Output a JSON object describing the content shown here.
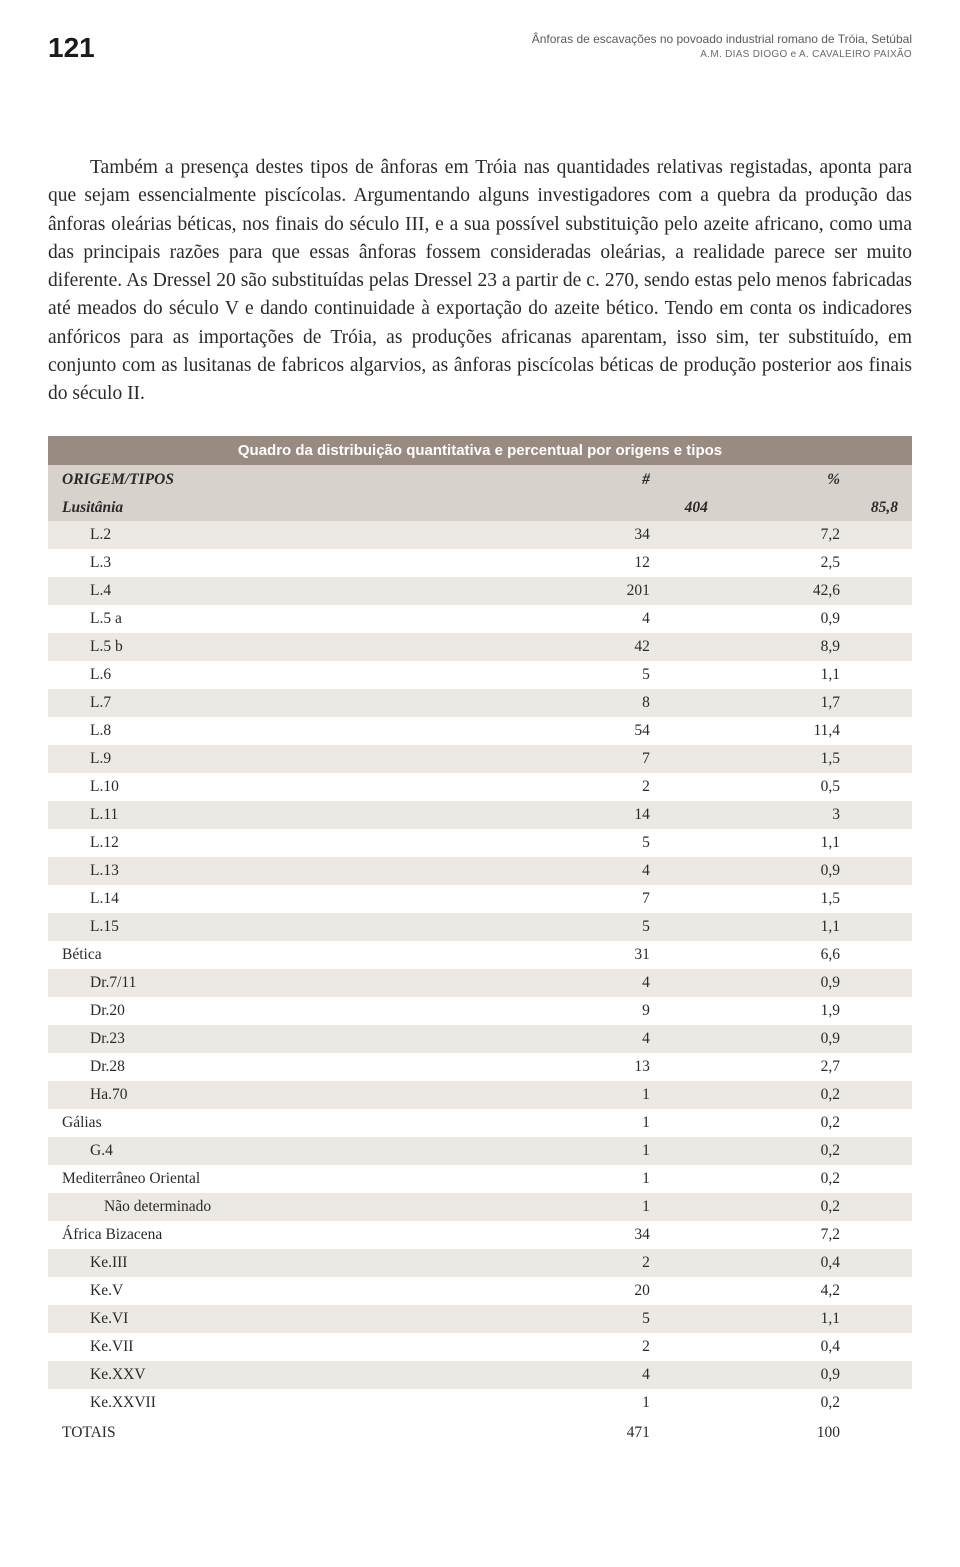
{
  "page": {
    "number": "121",
    "header_title": "Ânforas de escavações no povoado industrial romano de Tróia, Setúbal",
    "header_authors": "A.M. DIAS DIOGO e A. CAVALEIRO PAIXÃO"
  },
  "paragraph": "Também a presença destes tipos de ânforas em Tróia nas quantidades relativas registadas, aponta para que sejam essencialmente piscícolas. Argumentando alguns investigadores com a quebra da produção das ânforas oleárias béticas, nos finais do século III, e a sua possível substituição pelo azeite africano, como uma das principais razões para que essas ânforas fossem consideradas oleárias, a realidade parece ser muito diferente. As Dressel 20 são substituídas pelas Dressel 23 a partir de c. 270, sendo estas pelo menos fabricadas até meados do século V e dando continuidade à exportação do azeite bético. Tendo em conta os indicadores anfóricos para as importações de Tróia, as produções africanas aparentam, isso sim, ter substituído, em conjunto com as lusitanas de fabricos algarvios, as ânforas piscícolas béticas de produção posterior aos finais do século II.",
  "table": {
    "caption": "Quadro da distribuição quantitativa e percentual por origens e tipos",
    "columns": {
      "origin": "ORIGEM/TIPOS",
      "count_header": "#",
      "pct_header": "%"
    },
    "header_line": {
      "label": "Lusitânia",
      "count": "404",
      "pct": "85,8"
    },
    "rows": [
      {
        "label": "L.2",
        "count": "34",
        "pct": "7,2",
        "indent": 1,
        "stripe": true
      },
      {
        "label": "L.3",
        "count": "12",
        "pct": "2,5",
        "indent": 1,
        "stripe": false
      },
      {
        "label": "L.4",
        "count": "201",
        "pct": "42,6",
        "indent": 1,
        "stripe": true
      },
      {
        "label": "L.5 a",
        "count": "4",
        "pct": "0,9",
        "indent": 1,
        "stripe": false
      },
      {
        "label": "L.5 b",
        "count": "42",
        "pct": "8,9",
        "indent": 1,
        "stripe": true
      },
      {
        "label": "L.6",
        "count": "5",
        "pct": "1,1",
        "indent": 1,
        "stripe": false
      },
      {
        "label": "L.7",
        "count": "8",
        "pct": "1,7",
        "indent": 1,
        "stripe": true
      },
      {
        "label": "L.8",
        "count": "54",
        "pct": "11,4",
        "indent": 1,
        "stripe": false
      },
      {
        "label": "L.9",
        "count": "7",
        "pct": "1,5",
        "indent": 1,
        "stripe": true
      },
      {
        "label": "L.10",
        "count": "2",
        "pct": "0,5",
        "indent": 1,
        "stripe": false
      },
      {
        "label": "L.11",
        "count": "14",
        "pct": "3",
        "indent": 1,
        "stripe": true
      },
      {
        "label": "L.12",
        "count": "5",
        "pct": "1,1",
        "indent": 1,
        "stripe": false
      },
      {
        "label": "L.13",
        "count": "4",
        "pct": "0,9",
        "indent": 1,
        "stripe": true
      },
      {
        "label": "L.14",
        "count": "7",
        "pct": "1,5",
        "indent": 1,
        "stripe": false
      },
      {
        "label": "L.15",
        "count": "5",
        "pct": "1,1",
        "indent": 1,
        "stripe": true
      },
      {
        "label": "Bética",
        "count": "31",
        "pct": "6,6",
        "indent": 0,
        "stripe": false
      },
      {
        "label": "Dr.7/11",
        "count": "4",
        "pct": "0,9",
        "indent": 1,
        "stripe": true
      },
      {
        "label": "Dr.20",
        "count": "9",
        "pct": "1,9",
        "indent": 1,
        "stripe": false
      },
      {
        "label": "Dr.23",
        "count": "4",
        "pct": "0,9",
        "indent": 1,
        "stripe": true
      },
      {
        "label": "Dr.28",
        "count": "13",
        "pct": "2,7",
        "indent": 1,
        "stripe": false
      },
      {
        "label": "Ha.70",
        "count": "1",
        "pct": "0,2",
        "indent": 1,
        "stripe": true
      },
      {
        "label": "Gálias",
        "count": "1",
        "pct": "0,2",
        "indent": 0,
        "stripe": false
      },
      {
        "label": "G.4",
        "count": "1",
        "pct": "0,2",
        "indent": 1,
        "stripe": true
      },
      {
        "label": "Mediterrâneo Oriental",
        "count": "1",
        "pct": "0,2",
        "indent": 0,
        "stripe": false
      },
      {
        "label": "Não determinado",
        "count": "1",
        "pct": "0,2",
        "indent": 2,
        "stripe": true
      },
      {
        "label": "África Bizacena",
        "count": "34",
        "pct": "7,2",
        "indent": 0,
        "stripe": false
      },
      {
        "label": "Ke.III",
        "count": "2",
        "pct": "0,4",
        "indent": 1,
        "stripe": true
      },
      {
        "label": "Ke.V",
        "count": "20",
        "pct": "4,2",
        "indent": 1,
        "stripe": false
      },
      {
        "label": "Ke.VI",
        "count": "5",
        "pct": "1,1",
        "indent": 1,
        "stripe": true
      },
      {
        "label": "Ke.VII",
        "count": "2",
        "pct": "0,4",
        "indent": 1,
        "stripe": false
      },
      {
        "label": "Ke.XXV",
        "count": "4",
        "pct": "0,9",
        "indent": 1,
        "stripe": true
      },
      {
        "label": "Ke.XXVII",
        "count": "1",
        "pct": "0,2",
        "indent": 1,
        "stripe": false
      }
    ],
    "totals": {
      "label": "TOTAIS",
      "count": "471",
      "pct": "100"
    },
    "colors": {
      "caption_bg": "#9a8b82",
      "caption_fg": "#ffffff",
      "header_bg": "#d7d2cc",
      "stripe_bg": "#ece8e3",
      "plain_bg": "#ffffff",
      "text": "#2a2a2a"
    }
  }
}
